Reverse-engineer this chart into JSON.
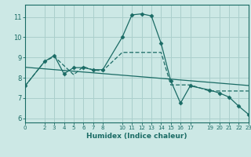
{
  "xlabel": "Humidex (Indice chaleur)",
  "bg_color": "#cce8e5",
  "grid_color": "#aacfcc",
  "line_color": "#1a6b65",
  "xlim": [
    0,
    23
  ],
  "ylim": [
    5.8,
    11.6
  ],
  "yticks": [
    6,
    7,
    8,
    9,
    10,
    11
  ],
  "xticks": [
    0,
    2,
    3,
    4,
    5,
    6,
    7,
    8,
    10,
    11,
    12,
    13,
    14,
    15,
    16,
    17,
    19,
    20,
    21,
    22,
    23
  ],
  "line1": {
    "x": [
      0,
      2,
      3,
      4,
      5,
      6,
      7,
      8,
      10,
      11,
      12,
      13,
      14,
      15,
      16,
      17,
      19,
      20,
      21,
      22,
      23
    ],
    "y": [
      7.6,
      8.8,
      9.1,
      8.2,
      8.5,
      8.5,
      8.4,
      8.4,
      10.0,
      11.1,
      11.15,
      11.05,
      9.7,
      7.85,
      6.75,
      7.6,
      7.4,
      7.25,
      7.05,
      6.6,
      6.2
    ]
  },
  "line2": {
    "x": [
      0,
      2,
      3,
      5,
      6,
      7,
      8,
      10,
      11,
      12,
      13,
      14,
      15,
      16,
      17,
      19,
      20,
      21,
      22,
      23
    ],
    "y": [
      7.6,
      8.8,
      9.05,
      8.15,
      8.55,
      8.38,
      8.35,
      9.25,
      9.25,
      9.25,
      9.25,
      9.25,
      7.65,
      7.65,
      7.65,
      7.35,
      7.35,
      7.35,
      7.35,
      7.35
    ]
  },
  "line3": {
    "x": [
      0,
      23
    ],
    "y": [
      8.52,
      7.62
    ]
  }
}
